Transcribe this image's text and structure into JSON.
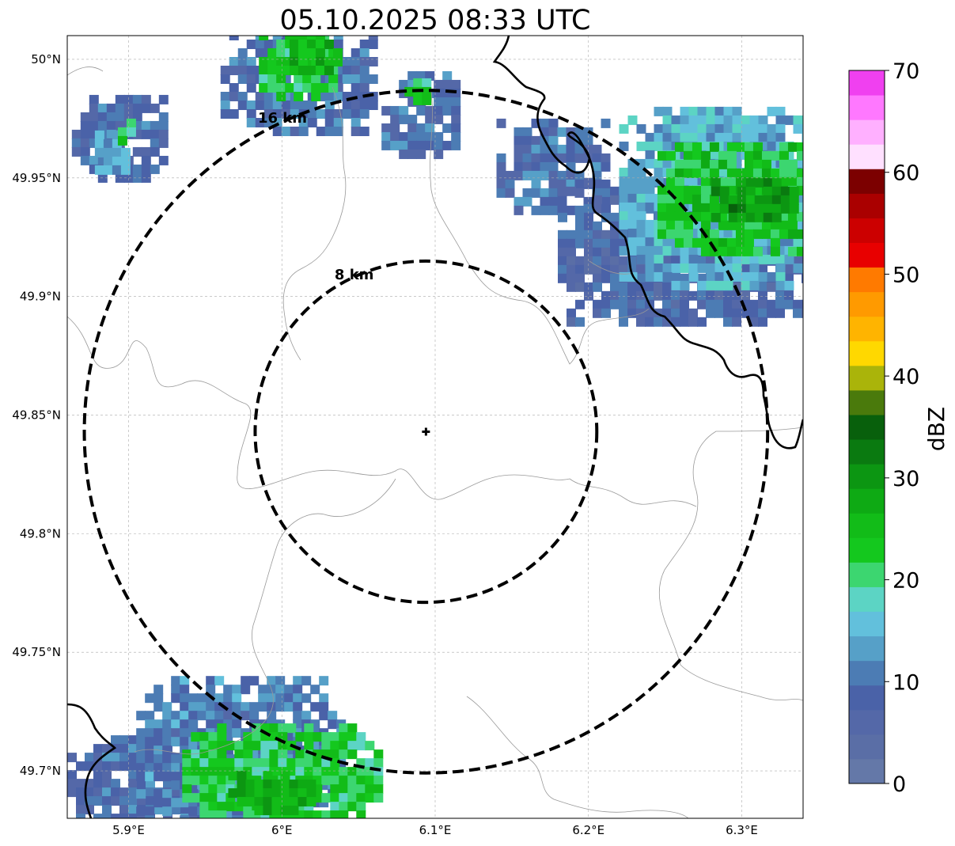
{
  "title": "05.10.2025 08:33 UTC",
  "map": {
    "extent": {
      "lon": [
        5.86,
        6.34
      ],
      "lat": [
        49.68,
        50.01
      ]
    },
    "x_ticks": [
      {
        "value": 5.9,
        "label": "5.9°E"
      },
      {
        "value": 6.0,
        "label": "6°E"
      },
      {
        "value": 6.1,
        "label": "6.1°E"
      },
      {
        "value": 6.2,
        "label": "6.2°E"
      },
      {
        "value": 6.3,
        "label": "6.3°E"
      }
    ],
    "y_ticks": [
      {
        "value": 50.0,
        "label": "50°N"
      },
      {
        "value": 49.95,
        "label": "49.95°N"
      },
      {
        "value": 49.9,
        "label": "49.9°N"
      },
      {
        "value": 49.85,
        "label": "49.85°N"
      },
      {
        "value": 49.8,
        "label": "49.8°N"
      },
      {
        "value": 49.75,
        "label": "49.75°N"
      },
      {
        "value": 49.7,
        "label": "49.7°N"
      }
    ],
    "gridlines": true,
    "center": {
      "lon": 6.094,
      "lat": 49.843,
      "marker": "plus-marker"
    },
    "rings": [
      {
        "radius_km": 8,
        "label": "8 km"
      },
      {
        "radius_km": 16,
        "label": "16 km"
      }
    ]
  },
  "colorbar": {
    "label": "dBZ",
    "min": 0,
    "max": 70,
    "ticks": [
      "0",
      "10",
      "20",
      "30",
      "40",
      "50",
      "60",
      "70"
    ],
    "colors": [
      "#6478a8",
      "#5a6ea6",
      "#5468a8",
      "#4a62a8",
      "#4c7cb4",
      "#56a0c8",
      "#62c0dc",
      "#5cd4c4",
      "#3cd670",
      "#14c81e",
      "#12bc18",
      "#0eaa14",
      "#0c9612",
      "#0a7a10",
      "#08600c",
      "#4a7a0c",
      "#aab40a",
      "#ffd800",
      "#ffb400",
      "#ff9a00",
      "#ff7a00",
      "#e80000",
      "#cc0000",
      "#aa0000",
      "#7c0000",
      "#ffe0ff",
      "#ffb0ff",
      "#ff78ff",
      "#f040f0"
    ]
  },
  "radar_cells": [
    {
      "lon": [
        5.863,
        5.925
      ],
      "lat": [
        49.95,
        49.985
      ],
      "dbz": 8
    },
    {
      "lon": [
        5.878,
        5.9
      ],
      "lat": [
        49.955,
        49.97
      ],
      "dbz": 15
    },
    {
      "lon": [
        5.893,
        5.903
      ],
      "lat": [
        49.967,
        49.975
      ],
      "dbz": 22
    },
    {
      "lon": [
        5.96,
        6.06
      ],
      "lat": [
        49.97,
        50.012
      ],
      "dbz": 9
    },
    {
      "lon": [
        5.985,
        6.035
      ],
      "lat": [
        49.985,
        50.012
      ],
      "dbz": 22
    },
    {
      "lon": [
        6.005,
        6.035
      ],
      "lat": [
        49.995,
        50.012
      ],
      "dbz": 26
    },
    {
      "lon": [
        6.065,
        6.115
      ],
      "lat": [
        49.96,
        49.995
      ],
      "dbz": 8
    },
    {
      "lon": [
        6.08,
        6.095
      ],
      "lat": [
        49.982,
        49.992
      ],
      "dbz": 22
    },
    {
      "lon": [
        6.14,
        6.21
      ],
      "lat": [
        49.935,
        49.975
      ],
      "dbz": 8
    },
    {
      "lon": [
        6.18,
        6.34
      ],
      "lat": [
        49.89,
        49.95
      ],
      "dbz": 7
    },
    {
      "lon": [
        6.22,
        6.34
      ],
      "lat": [
        49.905,
        49.98
      ],
      "dbz": 14
    },
    {
      "lon": [
        6.245,
        6.34
      ],
      "lat": [
        49.92,
        49.965
      ],
      "dbz": 23
    },
    {
      "lon": [
        6.28,
        6.335
      ],
      "lat": [
        49.935,
        49.95
      ],
      "dbz": 30
    },
    {
      "lon": [
        5.86,
        5.965
      ],
      "lat": [
        49.68,
        49.715
      ],
      "dbz": 8
    },
    {
      "lon": [
        5.905,
        6.04
      ],
      "lat": [
        49.68,
        49.74
      ],
      "dbz": 10
    },
    {
      "lon": [
        5.935,
        6.06
      ],
      "lat": [
        49.68,
        49.72
      ],
      "dbz": 22
    },
    {
      "lon": [
        5.965,
        6.02
      ],
      "lat": [
        49.685,
        49.7
      ],
      "dbz": 28
    }
  ]
}
